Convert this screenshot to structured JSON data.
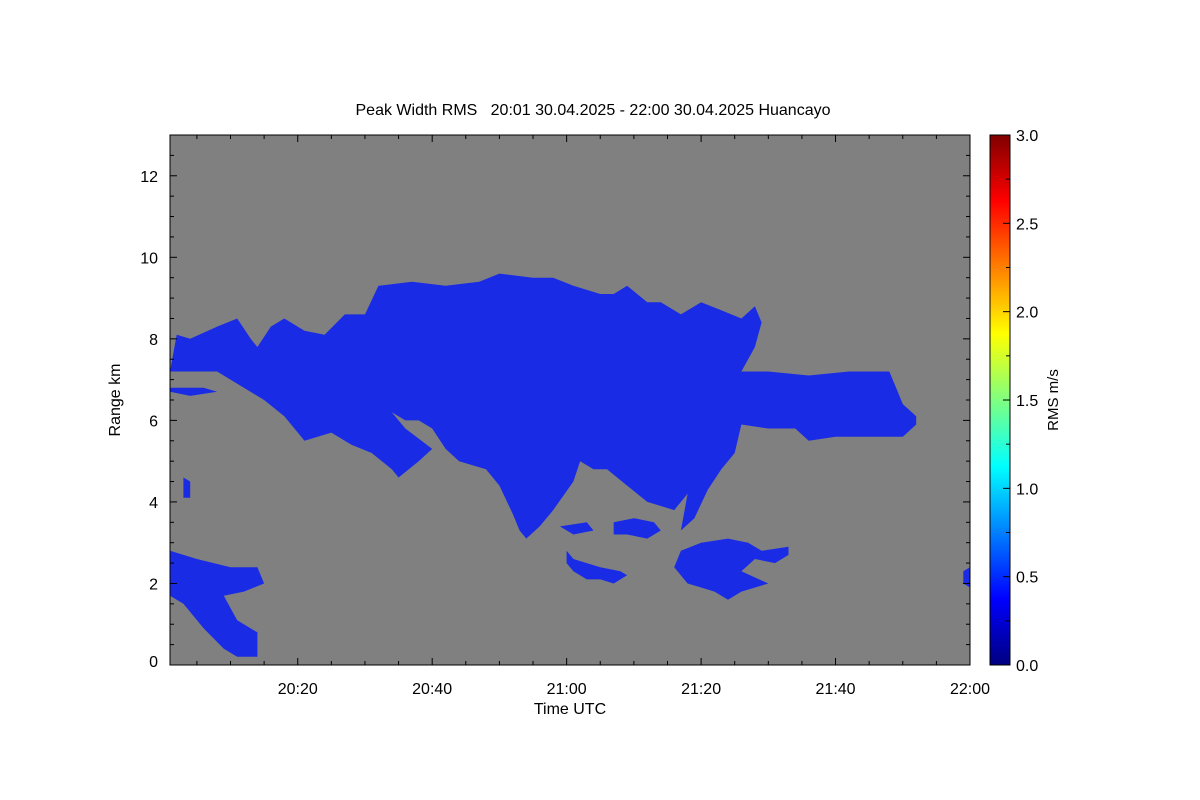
{
  "chart_data": {
    "type": "heatmap",
    "title": "Peak Width RMS   20:01 30.04.2025 - 22:00 30.04.2025 Huancayo",
    "xlabel": "Time UTC",
    "ylabel": "Range km",
    "x_unit": "minutes after 20:00 UTC",
    "xlim": [
      1,
      120
    ],
    "ylim": [
      0,
      13
    ],
    "x_ticks": [
      {
        "value": 20,
        "label": "20:20"
      },
      {
        "value": 40,
        "label": "20:40"
      },
      {
        "value": 60,
        "label": "21:00"
      },
      {
        "value": 80,
        "label": "21:20"
      },
      {
        "value": 100,
        "label": "21:40"
      },
      {
        "value": 120,
        "label": "22:00"
      }
    ],
    "y_ticks": [
      {
        "value": 0,
        "label": "0"
      },
      {
        "value": 2,
        "label": "2"
      },
      {
        "value": 4,
        "label": "4"
      },
      {
        "value": 6,
        "label": "6"
      },
      {
        "value": 8,
        "label": "8"
      },
      {
        "value": 10,
        "label": "10"
      },
      {
        "value": 12,
        "label": "12"
      }
    ],
    "colorbar": {
      "label": "RMS m/s",
      "min": 0.0,
      "max": 3.0,
      "ticks": [
        "0.0",
        "0.5",
        "1.0",
        "1.5",
        "2.0",
        "2.5",
        "3.0"
      ],
      "colormap": "jet"
    },
    "background_color": "#808080",
    "echo_color": "#1a2be6",
    "typical_value": 0.3,
    "regions": [
      {
        "name": "main-echo",
        "value": 0.3,
        "polygon": [
          [
            1,
            7.2
          ],
          [
            1,
            6.8
          ],
          [
            6,
            6.8
          ],
          [
            8,
            6.7
          ],
          [
            4,
            6.6
          ],
          [
            1,
            6.7
          ],
          [
            1,
            7.2
          ],
          [
            2,
            8.1
          ],
          [
            4,
            8.0
          ],
          [
            8,
            8.3
          ],
          [
            11,
            8.5
          ],
          [
            13,
            8.0
          ],
          [
            14,
            7.8
          ],
          [
            16,
            8.3
          ],
          [
            18,
            8.5
          ],
          [
            21,
            8.2
          ],
          [
            24,
            8.1
          ],
          [
            27,
            8.6
          ],
          [
            30,
            8.6
          ],
          [
            32,
            9.3
          ],
          [
            37,
            9.4
          ],
          [
            42,
            9.3
          ],
          [
            47,
            9.4
          ],
          [
            50,
            9.6
          ],
          [
            55,
            9.5
          ],
          [
            58,
            9.5
          ],
          [
            61,
            9.3
          ],
          [
            65,
            9.1
          ],
          [
            67,
            9.1
          ],
          [
            69,
            9.3
          ],
          [
            72,
            8.9
          ],
          [
            74,
            8.9
          ],
          [
            77,
            8.6
          ],
          [
            80,
            8.9
          ],
          [
            83,
            8.7
          ],
          [
            86,
            8.5
          ],
          [
            88,
            8.8
          ],
          [
            89,
            8.4
          ],
          [
            88,
            7.8
          ],
          [
            86,
            7.2
          ],
          [
            90,
            7.2
          ],
          [
            96,
            7.1
          ],
          [
            102,
            7.2
          ],
          [
            108,
            7.2
          ],
          [
            109,
            6.8
          ],
          [
            110,
            6.4
          ],
          [
            112,
            6.1
          ],
          [
            112,
            5.9
          ],
          [
            110,
            5.6
          ],
          [
            106,
            5.6
          ],
          [
            100,
            5.6
          ],
          [
            96,
            5.5
          ],
          [
            94,
            5.8
          ],
          [
            90,
            5.8
          ],
          [
            86,
            5.9
          ],
          [
            85,
            5.2
          ],
          [
            83,
            4.8
          ],
          [
            81,
            4.3
          ],
          [
            79,
            3.6
          ],
          [
            77,
            3.3
          ],
          [
            78,
            4.2
          ],
          [
            76,
            3.8
          ],
          [
            72,
            4.0
          ],
          [
            69,
            4.4
          ],
          [
            66,
            4.8
          ],
          [
            64,
            4.8
          ],
          [
            62,
            5.0
          ],
          [
            61,
            4.5
          ],
          [
            58,
            3.8
          ],
          [
            56,
            3.4
          ],
          [
            54,
            3.1
          ],
          [
            53,
            3.3
          ],
          [
            52,
            3.7
          ],
          [
            50,
            4.4
          ],
          [
            48,
            4.8
          ],
          [
            46,
            4.9
          ],
          [
            44,
            5.0
          ],
          [
            42,
            5.3
          ],
          [
            40,
            5.8
          ],
          [
            38,
            6.0
          ],
          [
            36,
            6.0
          ],
          [
            34,
            6.2
          ],
          [
            36,
            5.8
          ],
          [
            40,
            5.3
          ],
          [
            38,
            5.0
          ],
          [
            35,
            4.6
          ],
          [
            34,
            4.8
          ],
          [
            31,
            5.2
          ],
          [
            28,
            5.4
          ],
          [
            25,
            5.7
          ],
          [
            21,
            5.5
          ],
          [
            18,
            6.1
          ],
          [
            15,
            6.5
          ],
          [
            12,
            6.8
          ],
          [
            8,
            7.2
          ],
          [
            4,
            7.2
          ],
          [
            1,
            7.2
          ]
        ]
      },
      {
        "name": "echo-patch-1",
        "value": 0.3,
        "polygon": [
          [
            1,
            2.8
          ],
          [
            5,
            2.6
          ],
          [
            10,
            2.4
          ],
          [
            14,
            2.4
          ],
          [
            15,
            2.0
          ],
          [
            12,
            1.8
          ],
          [
            9,
            1.7
          ],
          [
            11,
            1.1
          ],
          [
            14,
            0.8
          ],
          [
            14,
            0.2
          ],
          [
            11,
            0.2
          ],
          [
            9,
            0.4
          ],
          [
            6,
            0.9
          ],
          [
            3,
            1.5
          ],
          [
            1,
            1.7
          ]
        ]
      },
      {
        "name": "echo-patch-2",
        "value": 0.3,
        "polygon": [
          [
            60,
            2.8
          ],
          [
            61,
            2.6
          ],
          [
            63,
            2.5
          ],
          [
            65,
            2.4
          ],
          [
            68,
            2.3
          ],
          [
            69,
            2.2
          ],
          [
            67,
            2.0
          ],
          [
            65,
            2.1
          ],
          [
            63,
            2.1
          ],
          [
            61,
            2.3
          ],
          [
            60,
            2.5
          ]
        ]
      },
      {
        "name": "echo-patch-3",
        "value": 0.3,
        "polygon": [
          [
            67,
            3.5
          ],
          [
            70,
            3.6
          ],
          [
            73,
            3.5
          ],
          [
            74,
            3.3
          ],
          [
            72,
            3.1
          ],
          [
            69,
            3.2
          ],
          [
            67,
            3.2
          ]
        ]
      },
      {
        "name": "echo-patch-4",
        "value": 0.3,
        "polygon": [
          [
            77,
            2.8
          ],
          [
            80,
            3.0
          ],
          [
            84,
            3.1
          ],
          [
            87,
            3.0
          ],
          [
            89,
            2.8
          ],
          [
            93,
            2.9
          ],
          [
            93,
            2.7
          ],
          [
            91,
            2.5
          ],
          [
            88,
            2.6
          ],
          [
            86,
            2.3
          ],
          [
            90,
            2.0
          ],
          [
            86,
            1.8
          ],
          [
            84,
            1.6
          ],
          [
            82,
            1.8
          ],
          [
            80,
            1.9
          ],
          [
            78,
            2.0
          ],
          [
            76,
            2.4
          ]
        ]
      },
      {
        "name": "echo-patch-5",
        "value": 0.3,
        "polygon": [
          [
            59,
            3.4
          ],
          [
            63,
            3.5
          ],
          [
            64,
            3.3
          ],
          [
            61,
            3.2
          ]
        ]
      },
      {
        "name": "echo-patch-6",
        "value": 0.3,
        "polygon": [
          [
            119,
            2.3
          ],
          [
            120,
            2.4
          ],
          [
            120,
            1.9
          ],
          [
            119,
            2.0
          ]
        ]
      },
      {
        "name": "echo-patch-7",
        "value": 0.3,
        "polygon": [
          [
            3,
            4.1
          ],
          [
            3,
            4.6
          ],
          [
            4,
            4.5
          ],
          [
            4,
            4.1
          ]
        ]
      }
    ]
  }
}
